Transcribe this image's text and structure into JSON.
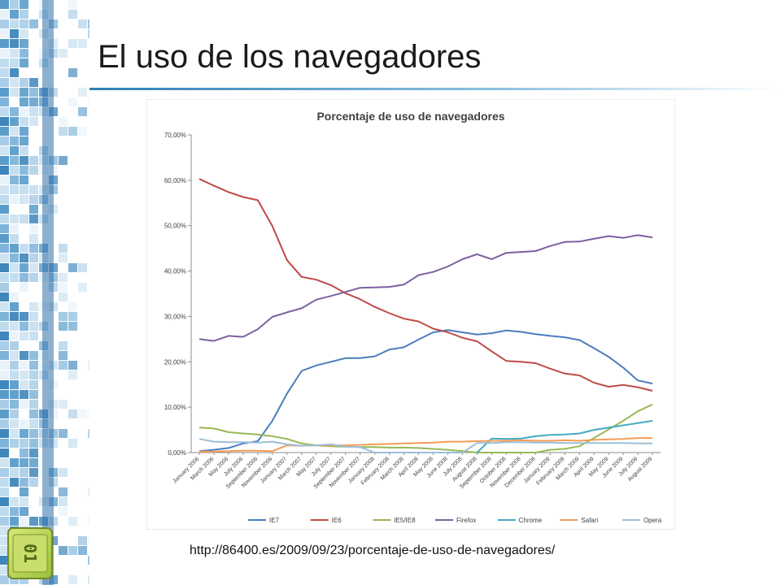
{
  "slide": {
    "title": "El uso de los navegadores",
    "source_url": "http://86400.es/2009/09/23/porcentaje-de-uso-de-navegadores/",
    "badge_text": "01",
    "accent_color": "#2f7fb3"
  },
  "chart_data": {
    "type": "line",
    "title": "Porcentaje de uso de navegadores",
    "xlabel": "",
    "ylabel": "",
    "ylim": [
      0,
      70
    ],
    "yticks": [
      "0,00%",
      "10,00%",
      "20,00%",
      "30,00%",
      "40,00%",
      "50,00%",
      "60,00%",
      "70,00%"
    ],
    "grid": false,
    "legend_position": "bottom",
    "categories": [
      "January 2006",
      "March 2006",
      "May 2006",
      "July 2006",
      "September 2006",
      "November 2006",
      "January 2007",
      "March 2007",
      "May 2007",
      "July 2007",
      "September 2007",
      "November 2007",
      "January 2008",
      "February 2008",
      "March 2008",
      "April 2008",
      "May 2008",
      "June 2008",
      "July 2008",
      "August 2008",
      "September 2008",
      "October 2008",
      "November 2008",
      "December 2008",
      "January 2009",
      "February 2009",
      "March 2009",
      "April 2009",
      "May 2009",
      "June 2009",
      "July 2009",
      "August 2009"
    ],
    "series": [
      {
        "name": "IE7",
        "color": "#4a7ebb",
        "values": [
          0.3,
          0.6,
          1.0,
          2.0,
          2.5,
          7.0,
          13.0,
          18.0,
          19.2,
          20.0,
          20.8,
          20.8,
          21.2,
          22.7,
          23.2,
          24.9,
          26.5,
          27.0,
          26.5,
          26.0,
          26.3,
          26.9,
          26.6,
          26.1,
          25.7,
          25.4,
          24.8,
          23.0,
          21.1,
          18.7,
          15.9,
          15.2
        ]
      },
      {
        "name": "IE6",
        "color": "#be4b48",
        "values": [
          60.3,
          58.8,
          57.4,
          56.3,
          55.6,
          49.9,
          42.4,
          38.7,
          38.1,
          36.9,
          35.1,
          33.8,
          32.1,
          30.7,
          29.5,
          28.9,
          27.3,
          26.5,
          25.3,
          24.5,
          22.3,
          20.2,
          20.0,
          19.7,
          18.5,
          17.4,
          17.0,
          15.4,
          14.5,
          14.9,
          14.4,
          13.6
        ]
      },
      {
        "name": "IE5/IE8",
        "color": "#98b954",
        "values": [
          5.5,
          5.3,
          4.5,
          4.2,
          4.0,
          3.6,
          3.0,
          2.0,
          1.6,
          1.4,
          1.3,
          1.2,
          1.2,
          1.1,
          1.1,
          1.0,
          0.8,
          0.6,
          0.3,
          0.0,
          0.0,
          0.0,
          0.0,
          0.0,
          0.6,
          0.8,
          1.4,
          3.2,
          5.1,
          7.0,
          9.1,
          10.6
        ]
      },
      {
        "name": "Firefox",
        "color": "#7d60a0",
        "values": [
          25.0,
          24.6,
          25.7,
          25.5,
          27.2,
          29.9,
          30.9,
          31.8,
          33.7,
          34.5,
          35.4,
          36.3,
          36.4,
          36.5,
          37.0,
          39.1,
          39.8,
          41.0,
          42.6,
          43.7,
          42.6,
          44.0,
          44.2,
          44.4,
          45.5,
          46.4,
          46.5,
          47.1,
          47.7,
          47.3,
          47.9,
          47.4
        ]
      },
      {
        "name": "Chrome",
        "color": "#46aac5",
        "values": [
          null,
          null,
          null,
          null,
          null,
          null,
          null,
          null,
          null,
          null,
          null,
          null,
          null,
          null,
          null,
          null,
          null,
          null,
          null,
          0.0,
          3.1,
          3.0,
          3.1,
          3.6,
          3.9,
          4.0,
          4.2,
          5.0,
          5.5,
          6.0,
          6.5,
          7.0
        ]
      },
      {
        "name": "Safari",
        "color": "#f59d56",
        "values": [
          0.2,
          0.2,
          0.3,
          0.4,
          0.4,
          0.3,
          1.6,
          1.5,
          1.6,
          1.6,
          1.6,
          1.7,
          1.8,
          1.9,
          2.0,
          2.1,
          2.2,
          2.4,
          2.4,
          2.5,
          2.6,
          2.6,
          2.7,
          2.6,
          2.6,
          2.7,
          2.6,
          2.8,
          2.9,
          3.0,
          3.2,
          3.2
        ]
      },
      {
        "name": "Opera",
        "color": "#9bbfd8",
        "values": [
          3.0,
          2.4,
          2.3,
          2.3,
          2.2,
          2.4,
          1.8,
          1.5,
          1.6,
          1.8,
          1.3,
          1.2,
          0.0,
          0.0,
          0.0,
          0.0,
          0.0,
          0.0,
          0.0,
          2.1,
          2.1,
          2.3,
          2.3,
          2.2,
          2.2,
          2.1,
          2.1,
          2.1,
          2.1,
          2.1,
          2.0,
          2.0
        ]
      }
    ]
  }
}
